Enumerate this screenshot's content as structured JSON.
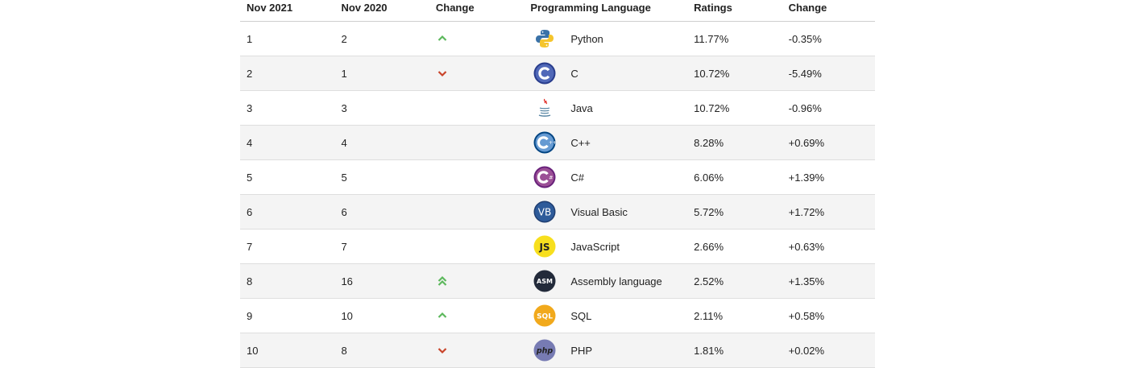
{
  "table": {
    "headers": [
      "Nov 2021",
      "Nov 2020",
      "Change",
      "Programming Language",
      "Ratings",
      "Change"
    ],
    "rows": [
      {
        "rank_2021": "1",
        "rank_2020": "2",
        "trend": "up",
        "icon": "python-logo-icon",
        "language": "Python",
        "rating": "11.77%",
        "change": "-0.35%"
      },
      {
        "rank_2021": "2",
        "rank_2020": "1",
        "trend": "down",
        "icon": "c-logo-icon",
        "language": "C",
        "rating": "10.72%",
        "change": "-5.49%"
      },
      {
        "rank_2021": "3",
        "rank_2020": "3",
        "trend": "none",
        "icon": "java-logo-icon",
        "language": "Java",
        "rating": "10.72%",
        "change": "-0.96%"
      },
      {
        "rank_2021": "4",
        "rank_2020": "4",
        "trend": "none",
        "icon": "cpp-logo-icon",
        "language": "C++",
        "rating": "8.28%",
        "change": "+0.69%"
      },
      {
        "rank_2021": "5",
        "rank_2020": "5",
        "trend": "none",
        "icon": "csharp-logo-icon",
        "language": "C#",
        "rating": "6.06%",
        "change": "+1.39%"
      },
      {
        "rank_2021": "6",
        "rank_2020": "6",
        "trend": "none",
        "icon": "visual-basic-logo-icon",
        "language": "Visual Basic",
        "rating": "5.72%",
        "change": "+1.72%"
      },
      {
        "rank_2021": "7",
        "rank_2020": "7",
        "trend": "none",
        "icon": "javascript-logo-icon",
        "language": "JavaScript",
        "rating": "2.66%",
        "change": "+0.63%"
      },
      {
        "rank_2021": "8",
        "rank_2020": "16",
        "trend": "double-up",
        "icon": "assembly-logo-icon",
        "language": "Assembly language",
        "rating": "2.52%",
        "change": "+1.35%"
      },
      {
        "rank_2021": "9",
        "rank_2020": "10",
        "trend": "up",
        "icon": "sql-logo-icon",
        "language": "SQL",
        "rating": "2.11%",
        "change": "+0.58%"
      },
      {
        "rank_2021": "10",
        "rank_2020": "8",
        "trend": "down",
        "icon": "php-logo-icon",
        "language": "PHP",
        "rating": "1.81%",
        "change": "+0.02%"
      }
    ]
  },
  "colors": {
    "up": "#5cb85c",
    "down": "#c9442a"
  }
}
